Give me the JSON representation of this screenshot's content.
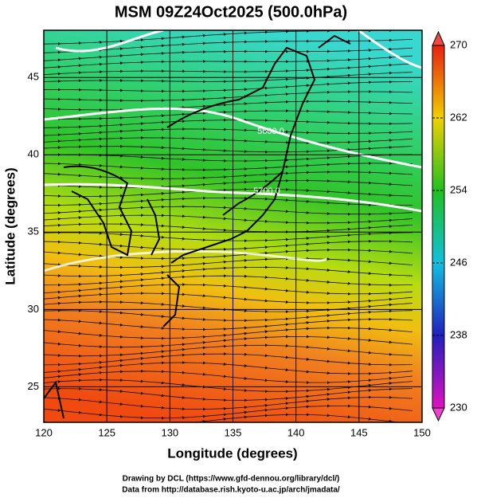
{
  "title": "MSM 09Z24Oct2025 (500.0hPa)",
  "map": {
    "xlabel": "Longitude (degrees)",
    "ylabel": "Latitude  (degrees)",
    "xlim": [
      120,
      150
    ],
    "ylim": [
      22.7,
      48.05
    ],
    "xticks": [
      120,
      125,
      130,
      135,
      140,
      145,
      150
    ],
    "yticks": [
      25,
      30,
      35,
      40,
      45
    ],
    "contour_labels": [
      "5600.0",
      "5700.0"
    ]
  },
  "colorbar": {
    "lim": [
      230,
      270
    ],
    "ticks": [
      230,
      238,
      246,
      254,
      262,
      270
    ]
  },
  "footer": [
    "Drawing by DCL (https://www.gfd-dennou.org/library/dcl/)",
    "Data from http://database.rish.kyoto-u.ac.jp/arch/jmadata/"
  ]
}
